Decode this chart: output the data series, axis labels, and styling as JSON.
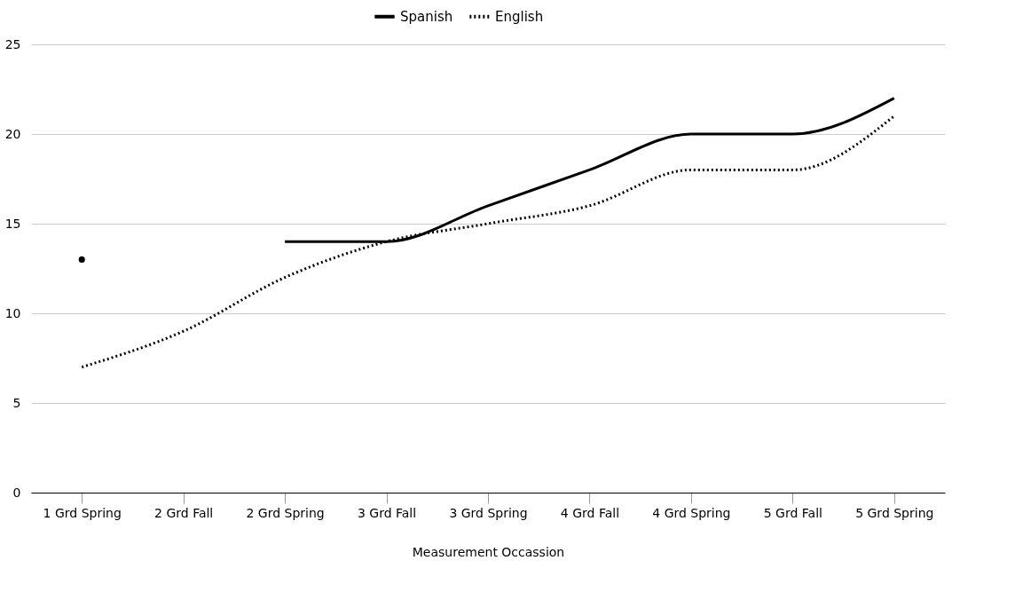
{
  "chart_data": {
    "type": "line",
    "xlabel": "Measurement Occassion",
    "categories": [
      "1 Grd Spring",
      "2 Grd Fall",
      "2 Grd Spring",
      "3 Grd Fall",
      "3 Grd Spring",
      "4 Grd Fall",
      "4 Grd Spring",
      "5 Grd Fall",
      "5 Grd Spring"
    ],
    "series": [
      {
        "name": "Spanish",
        "color": "#000000",
        "line_style": "solid",
        "values": [
          13,
          null,
          14,
          14,
          16,
          18,
          20,
          20,
          22
        ]
      },
      {
        "name": "English",
        "color": "#000000",
        "line_style": "dotted",
        "values": [
          7,
          9,
          12,
          14,
          15,
          16,
          18,
          18,
          21
        ]
      }
    ],
    "ylim": [
      0,
      25
    ],
    "yticks": [
      0,
      5,
      10,
      15,
      20,
      25
    ],
    "grid": "y",
    "legend": "top"
  }
}
